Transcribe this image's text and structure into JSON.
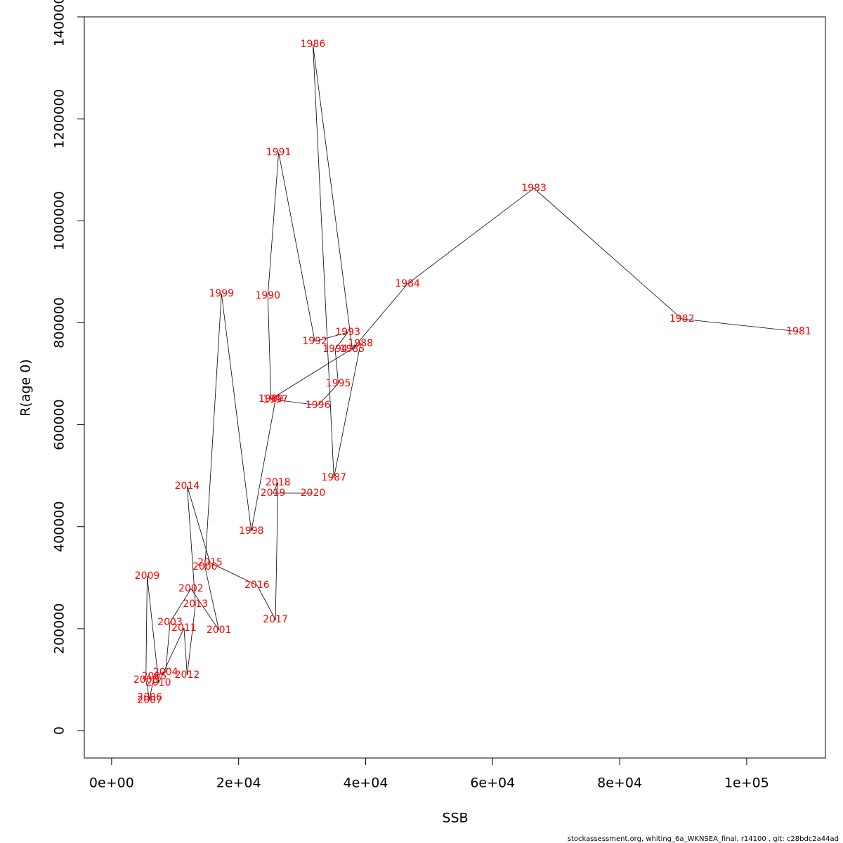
{
  "chart_data": {
    "type": "line",
    "x_label": "SSB",
    "y_label": "R(age 0)",
    "footer": "stockassessment.org, whiting_6a_WKNSEA_final, r14100 , git: c28bdc2a44ad",
    "color": "#000000",
    "label_color": "#ff0000",
    "labels": [
      "1981",
      "1982",
      "1983",
      "1984",
      "1985",
      "1986",
      "1987",
      "1988",
      "1989",
      "1990",
      "1991",
      "1992",
      "1993",
      "1994",
      "1995",
      "1996",
      "1997",
      "1998",
      "1999",
      "2000",
      "2001",
      "2002",
      "2003",
      "2004",
      "2005",
      "2006",
      "2007",
      "2008",
      "2009",
      "2010",
      "2011",
      "2012",
      "2013",
      "2014",
      "2015",
      "2016",
      "2017",
      "2018",
      "2019",
      "2020"
    ],
    "x": [
      108200,
      89800,
      66500,
      46600,
      37900,
      31700,
      35000,
      39200,
      25100,
      24600,
      26300,
      32000,
      37200,
      35200,
      35700,
      32500,
      25800,
      22000,
      17300,
      14700,
      16900,
      12500,
      9200,
      8500,
      6700,
      6000,
      6000,
      5400,
      5600,
      7400,
      11400,
      11900,
      13200,
      11900,
      15500,
      22900,
      25800,
      26200,
      25400,
      31700
    ],
    "values": [
      782700,
      807500,
      1063800,
      876400,
      748200,
      1346300,
      496100,
      759300,
      650400,
      853000,
      1134100,
      763400,
      781300,
      748200,
      680700,
      638000,
      649000,
      391400,
      857100,
      321100,
      197100,
      278300,
      212200,
      114400,
      106100,
      64800,
      59300,
      99200,
      303200,
      93700,
      201200,
      108900,
      248000,
      479500,
      329300,
      285200,
      217700,
      486400,
      465800,
      465800
    ],
    "xlim": [
      -4300,
      112400
    ],
    "ylim": [
      -53700,
      1400000
    ],
    "xticks": [
      {
        "value": 0,
        "label": "0e+00"
      },
      {
        "value": 20000,
        "label": "2e+04"
      },
      {
        "value": 40000,
        "label": "4e+04"
      },
      {
        "value": 60000,
        "label": "6e+04"
      },
      {
        "value": 80000,
        "label": "8e+04"
      },
      {
        "value": 100000,
        "label": "1e+05"
      }
    ],
    "yticks": [
      0,
      200000,
      400000,
      600000,
      800000,
      1000000,
      1200000,
      1400000
    ]
  }
}
